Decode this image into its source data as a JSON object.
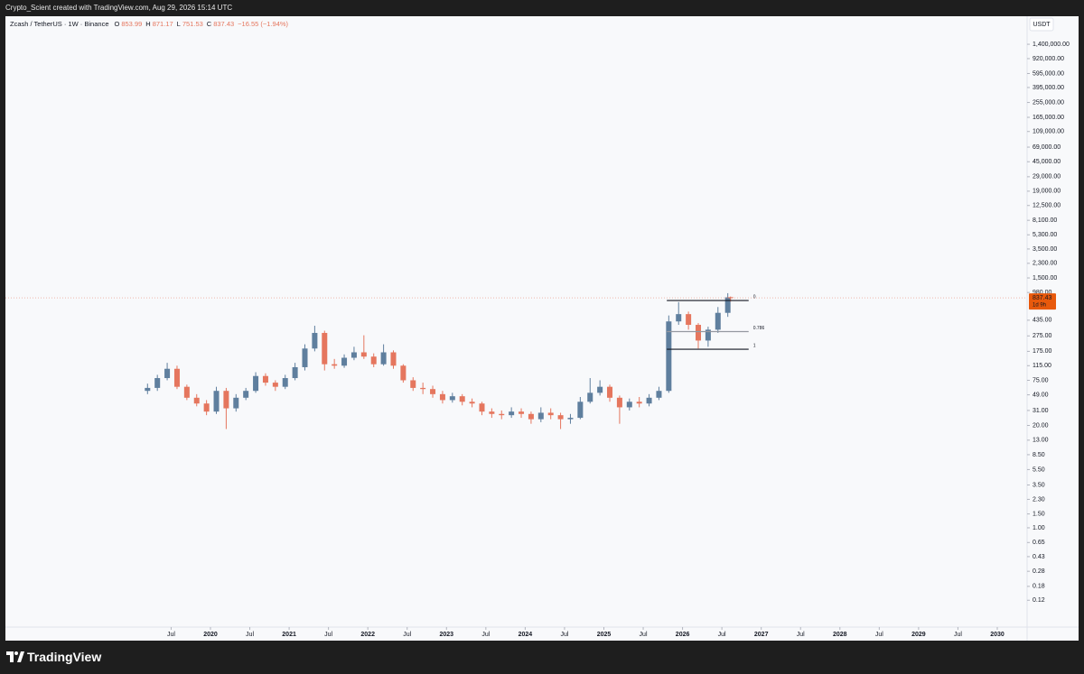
{
  "header": {
    "text": "Crypto_Scient created with TradingView.com, Aug 29, 2026 15:14 UTC"
  },
  "footer": {
    "brand": "TradingView"
  },
  "chart_data": {
    "type": "candlestick",
    "title": "Zcash / TetherUS · 1W · Binance",
    "ohlc_labels": [
      "O",
      "H",
      "L",
      "C"
    ],
    "change": "−16.55 (−1.94%)",
    "currency": "USDT",
    "countdown": "1d 9h",
    "log_scale": true,
    "up_color": "#5f7f9e",
    "down_color": "#e5765e",
    "x": [
      2019.2,
      2019.325,
      2019.45,
      2019.575,
      2019.7,
      2019.825,
      2019.95,
      2020.075,
      2020.2,
      2020.325,
      2020.45,
      2020.575,
      2020.7,
      2020.825,
      2020.95,
      2021.075,
      2021.2,
      2021.325,
      2021.45,
      2021.575,
      2021.7,
      2021.825,
      2021.95,
      2022.075,
      2022.2,
      2022.325,
      2022.45,
      2022.575,
      2022.7,
      2022.825,
      2022.95,
      2023.075,
      2023.2,
      2023.325,
      2023.45,
      2023.575,
      2023.7,
      2023.825,
      2023.95,
      2024.075,
      2024.2,
      2024.325,
      2024.45,
      2024.575,
      2024.7,
      2024.825,
      2024.95,
      2025.075,
      2025.2,
      2025.325,
      2025.45,
      2025.575,
      2025.7,
      2025.825,
      2025.95,
      2026.075,
      2026.2,
      2026.325,
      2026.45,
      2026.575,
      2026.61
    ],
    "open": [
      55,
      60,
      80,
      105,
      62,
      45,
      38,
      30,
      55,
      33,
      45,
      55,
      85,
      70,
      62,
      80,
      110,
      190,
      300,
      120,
      115,
      145,
      170,
      150,
      120,
      170,
      115,
      75,
      60,
      58,
      50,
      42,
      47,
      40,
      38,
      30,
      28,
      27,
      30,
      28,
      24,
      29,
      27,
      24,
      25,
      40,
      52,
      62,
      45,
      34,
      40,
      38,
      45,
      55,
      420,
      520,
      380,
      240,
      330,
      540,
      853.99
    ],
    "high": [
      68,
      88,
      125,
      115,
      66,
      50,
      42,
      62,
      60,
      50,
      60,
      95,
      92,
      75,
      88,
      125,
      215,
      370,
      320,
      140,
      160,
      200,
      280,
      165,
      215,
      180,
      120,
      82,
      70,
      64,
      55,
      52,
      50,
      44,
      40,
      33,
      31,
      34,
      33,
      30,
      34,
      33,
      29,
      28,
      46,
      80,
      75,
      66,
      48,
      44,
      46,
      50,
      62,
      500,
      740,
      560,
      400,
      360,
      640,
      960,
      871.17
    ],
    "low": [
      50,
      55,
      75,
      58,
      42,
      35,
      27,
      28,
      18,
      30,
      42,
      52,
      64,
      55,
      58,
      75,
      100,
      175,
      100,
      105,
      108,
      135,
      140,
      110,
      115,
      105,
      70,
      55,
      50,
      45,
      38,
      39,
      36,
      34,
      27,
      25,
      24,
      25,
      25,
      21,
      22,
      24,
      18,
      21,
      24,
      38,
      48,
      40,
      21,
      31,
      34,
      35,
      42,
      52,
      380,
      330,
      190,
      200,
      300,
      480,
      751.53
    ],
    "close": [
      60,
      80,
      105,
      62,
      45,
      38,
      30,
      55,
      33,
      45,
      55,
      85,
      70,
      62,
      80,
      110,
      190,
      300,
      120,
      115,
      145,
      170,
      150,
      120,
      170,
      115,
      75,
      60,
      58,
      50,
      42,
      47,
      40,
      38,
      30,
      28,
      27,
      30,
      28,
      24,
      29,
      27,
      24,
      25,
      40,
      52,
      62,
      45,
      34,
      40,
      38,
      45,
      55,
      420,
      520,
      380,
      240,
      330,
      540,
      850,
      837.43
    ],
    "levels_x": [
      2025.8,
      2026.84
    ],
    "levels": [
      {
        "label": "0",
        "value": 774,
        "color": "#131722"
      },
      {
        "label": "0.786",
        "value": 312,
        "color": "#9598a1"
      },
      {
        "label": "1",
        "value": 186,
        "color": "#131722"
      }
    ],
    "xlim": [
      2017.394,
      2030.379
    ],
    "xticks": [
      {
        "value": 2019.5,
        "label": "Jul"
      },
      2020,
      {
        "value": 2020.5,
        "label": "Jul"
      },
      2021,
      {
        "value": 2021.5,
        "label": "Jul"
      },
      2022,
      {
        "value": 2022.5,
        "label": "Jul"
      },
      2023,
      {
        "value": 2023.5,
        "label": "Jul"
      },
      2024,
      {
        "value": 2024.5,
        "label": "Jul"
      },
      2025,
      {
        "value": 2025.5,
        "label": "Jul"
      },
      2026,
      {
        "value": 2026.5,
        "label": "Jul"
      },
      2027,
      {
        "value": 2027.5,
        "label": "Jul"
      },
      2028,
      {
        "value": 2028.5,
        "label": "Jul"
      },
      2029,
      {
        "value": 2029.5,
        "label": "Jul"
      },
      2030
    ],
    "ylim": [
      0.0547,
      3180000
    ],
    "yticks": [
      {
        "value": 1400000,
        "label": "1,400,000.00"
      },
      {
        "value": 920000,
        "label": "920,000.00"
      },
      {
        "value": 595000,
        "label": "595,000.00"
      },
      {
        "value": 395000,
        "label": "395,000.00"
      },
      {
        "value": 255000,
        "label": "255,000.00"
      },
      {
        "value": 165000,
        "label": "165,000.00"
      },
      {
        "value": 109000,
        "label": "109,000.00"
      },
      {
        "value": 69000,
        "label": "69,000.00"
      },
      {
        "value": 45000,
        "label": "45,000.00"
      },
      {
        "value": 29000,
        "label": "29,000.00"
      },
      {
        "value": 19000,
        "label": "19,000.00"
      },
      {
        "value": 12500,
        "label": "12,500.00"
      },
      {
        "value": 8100,
        "label": "8,100.00"
      },
      {
        "value": 5300,
        "label": "5,300.00"
      },
      {
        "value": 3500,
        "label": "3,500.00"
      },
      {
        "value": 2300,
        "label": "2,300.00"
      },
      {
        "value": 1500,
        "label": "1,500.00"
      },
      {
        "value": 980,
        "label": "980.00"
      },
      {
        "value": 435,
        "label": "435.00"
      },
      {
        "value": 275,
        "label": "275.00"
      },
      {
        "value": 175,
        "label": "175.00"
      },
      {
        "value": 115,
        "label": "115.00"
      },
      {
        "value": 75,
        "label": "75.00"
      },
      {
        "value": 49,
        "label": "49.00"
      },
      {
        "value": 31,
        "label": "31.00"
      },
      {
        "value": 20,
        "label": "20.00"
      },
      {
        "value": 13,
        "label": "13.00"
      },
      {
        "value": 8.5,
        "label": "8.50"
      },
      {
        "value": 5.5,
        "label": "5.50"
      },
      {
        "value": 3.5,
        "label": "3.50"
      },
      {
        "value": 2.3,
        "label": "2.30"
      },
      {
        "value": 1.5,
        "label": "1.50"
      },
      {
        "value": 1,
        "label": "1.00"
      },
      {
        "value": 0.65,
        "label": "0.65"
      },
      {
        "value": 0.43,
        "label": "0.43"
      },
      {
        "value": 0.28,
        "label": "0.28"
      },
      {
        "value": 0.18,
        "label": "0.18"
      },
      {
        "value": 0.12,
        "label": "0.12"
      }
    ],
    "grid": false
  }
}
